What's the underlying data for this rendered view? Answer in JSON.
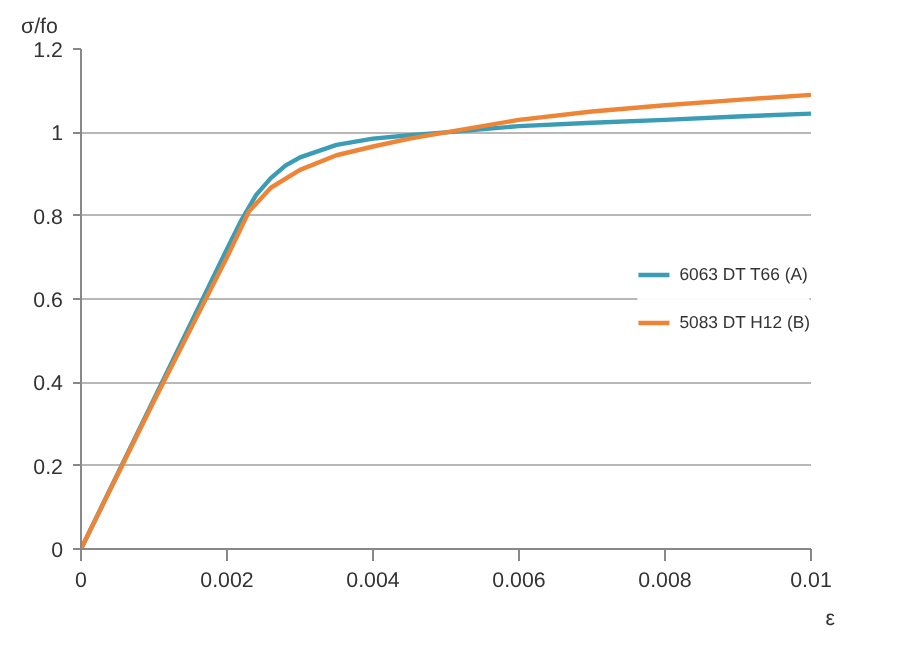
{
  "chart_data": {
    "type": "line",
    "xlabel": "ε",
    "ylabel": "σ/fo",
    "xlim": [
      0,
      0.01
    ],
    "ylim": [
      0,
      1.2
    ],
    "xticks": [
      0,
      0.002,
      0.004,
      0.006,
      0.008,
      0.01
    ],
    "yticks": [
      0,
      0.2,
      0.4,
      0.6,
      0.8,
      1,
      1.2
    ],
    "grid": "y",
    "legend": "right",
    "marker": "none",
    "line_style": "solid",
    "series": [
      {
        "name": "6063 DT T66 (A)",
        "color": "#3a9db5",
        "x": [
          0,
          0.001,
          0.002,
          0.0022,
          0.0024,
          0.0026,
          0.0028,
          0.003,
          0.0035,
          0.004,
          0.0045,
          0.005,
          0.006,
          0.007,
          0.008,
          0.009,
          0.01
        ],
        "values": [
          0,
          0.36,
          0.72,
          0.79,
          0.85,
          0.89,
          0.92,
          0.94,
          0.97,
          0.985,
          0.993,
          1.0,
          1.015,
          1.023,
          1.03,
          1.038,
          1.045
        ]
      },
      {
        "name": "5083 DT H12 (B)",
        "color": "#ee8435",
        "x": [
          0,
          0.001,
          0.002,
          0.0023,
          0.0026,
          0.003,
          0.0035,
          0.004,
          0.0045,
          0.005,
          0.006,
          0.007,
          0.008,
          0.009,
          0.01
        ],
        "values": [
          0,
          0.355,
          0.7,
          0.81,
          0.867,
          0.91,
          0.945,
          0.966,
          0.985,
          1.0,
          1.03,
          1.05,
          1.065,
          1.078,
          1.09
        ]
      }
    ]
  }
}
